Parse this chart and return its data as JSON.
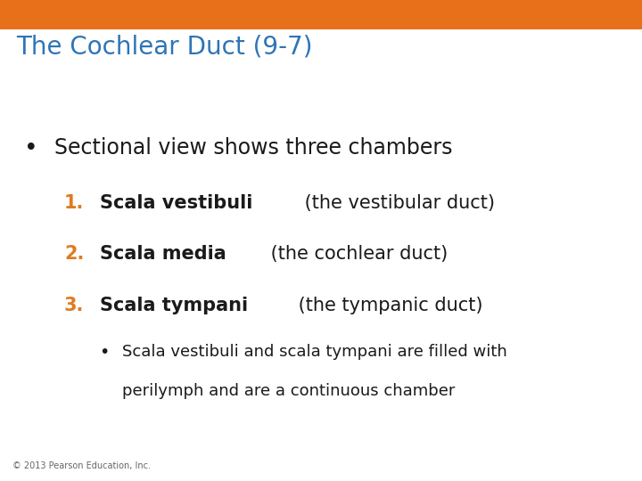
{
  "title": "The Cochlear Duct (9-7)",
  "title_color": "#2E75B6",
  "title_fontsize": 20,
  "header_bar_color": "#E8701A",
  "header_bar_height": 0.062,
  "background_color": "#FFFFFF",
  "bullet1": "Sectional view shows three chambers",
  "bullet1_color": "#1A1A1A",
  "bullet1_fontsize": 17,
  "items": [
    {
      "number": "1.",
      "bold_text": "Scala vestibuli",
      "normal_text": " (the vestibular duct)",
      "num_color": "#E07B20",
      "bold_color": "#1A1A1A",
      "normal_color": "#1A1A1A",
      "fontsize": 15
    },
    {
      "number": "2.",
      "bold_text": "Scala media",
      "normal_text": " (the cochlear duct)",
      "num_color": "#E07B20",
      "bold_color": "#1A1A1A",
      "normal_color": "#1A1A1A",
      "fontsize": 15
    },
    {
      "number": "3.",
      "bold_text": "Scala tympani",
      "normal_text": " (the tympanic duct)",
      "num_color": "#E07B20",
      "bold_color": "#1A1A1A",
      "normal_color": "#1A1A1A",
      "fontsize": 15
    }
  ],
  "sub_bullet_line1": "Scala vestibuli and scala tympani are filled with",
  "sub_bullet_line2": "perilymph and are a continuous chamber",
  "sub_bullet_color": "#1A1A1A",
  "sub_bullet_fontsize": 13,
  "footer": "© 2013 Pearson Education, Inc.",
  "footer_color": "#666666",
  "footer_fontsize": 7
}
